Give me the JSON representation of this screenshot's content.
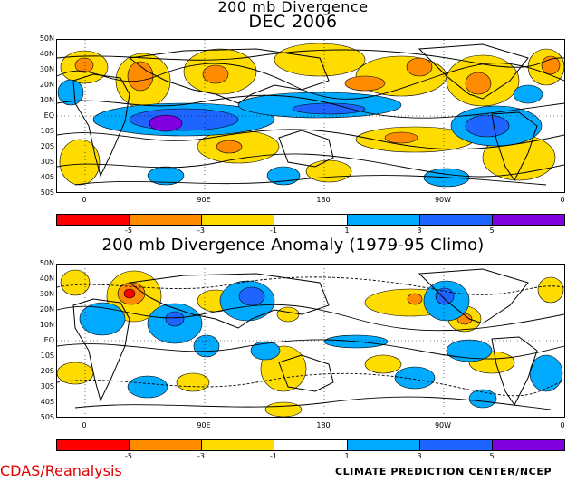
{
  "titles": {
    "top_line1": "200 mb Divergence",
    "top_line2": "DEC 2006",
    "bottom": "200 mb Divergence Anomaly (1979-95 Climo)"
  },
  "lat_labels": [
    "50N",
    "40N",
    "30N",
    "20N",
    "10N",
    "EQ",
    "10S",
    "20S",
    "30S",
    "40S",
    "50S"
  ],
  "lon_labels": [
    "0",
    "90E",
    "180",
    "90W",
    "0"
  ],
  "colorbar": {
    "colors": [
      "#ff0000",
      "#ff8c00",
      "#ffdc00",
      "#ffffff",
      "#00aaff",
      "#1e64ff",
      "#8000e0"
    ],
    "ticks": [
      "-5",
      "-3",
      "-1",
      "1",
      "3",
      "5"
    ]
  },
  "map_colors": {
    "red": "#ff0000",
    "orange": "#ff8c00",
    "yellow": "#ffdc00",
    "light_blue": "#00aaff",
    "blue": "#1e64ff",
    "purple": "#8000e0"
  },
  "footer": {
    "left": "CDAS/Reanalysis",
    "right": "CLIMATE PREDICTION CENTER/NCEP"
  }
}
